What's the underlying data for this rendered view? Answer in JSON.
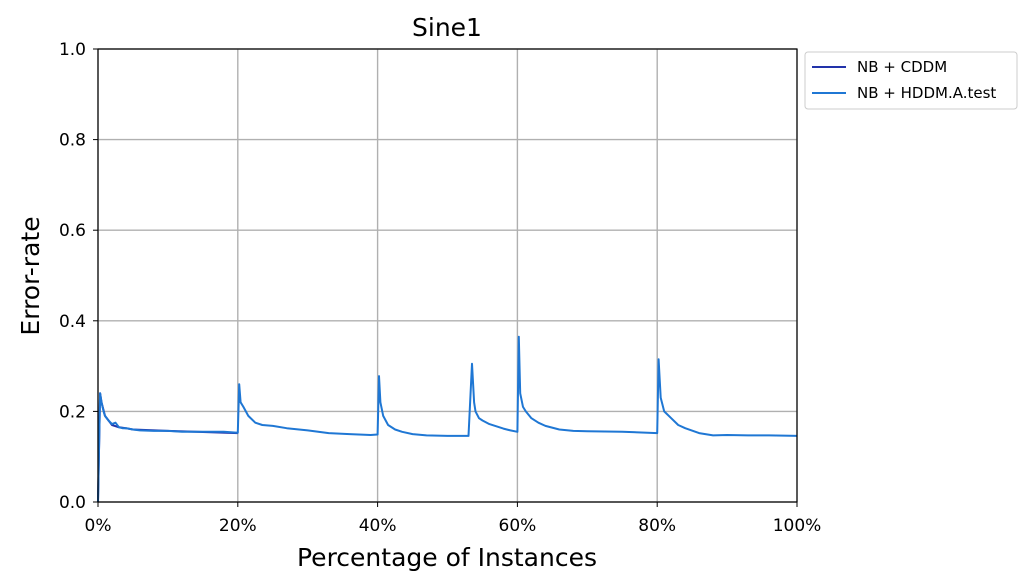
{
  "chart_data": {
    "type": "line",
    "title": "Sine1",
    "xlabel": "Percentage of Instances",
    "ylabel": "Error-rate",
    "xlim": [
      0,
      100
    ],
    "ylim": [
      0,
      1.0
    ],
    "x_ticks": [
      "0%",
      "20%",
      "40%",
      "60%",
      "80%",
      "100%"
    ],
    "y_ticks": [
      "0.0",
      "0.2",
      "0.4",
      "0.6",
      "0.8",
      "1.0"
    ],
    "grid": true,
    "legend_position": "outside-top-right",
    "series": [
      {
        "name": "NB + CDDM",
        "color": "#2233aa",
        "x": [
          0,
          0.3,
          0.5,
          1,
          2,
          3,
          4,
          5,
          10,
          20
        ],
        "y": [
          0.0,
          0.24,
          0.22,
          0.19,
          0.17,
          0.165,
          0.163,
          0.16,
          0.157,
          0.152
        ]
      },
      {
        "name": "NB + HDDM.A.test",
        "color": "#1f77d4",
        "x": [
          0,
          0.3,
          0.5,
          0.8,
          1.0,
          1.5,
          2,
          2.5,
          3,
          3.5,
          4,
          5,
          6,
          8,
          10,
          12,
          15,
          18,
          20,
          20.2,
          20.4,
          20.8,
          21.5,
          22.5,
          23.5,
          25,
          27,
          30,
          33,
          36,
          39,
          40,
          40.2,
          40.4,
          40.8,
          41.5,
          42.5,
          43.5,
          45,
          47,
          50,
          53,
          53.5,
          53.8,
          54,
          54.5,
          55,
          56,
          57,
          58,
          59,
          60,
          60.2,
          60.4,
          60.8,
          61.2,
          62,
          63,
          64,
          66,
          68,
          70,
          75,
          80,
          80.2,
          80.5,
          81,
          82,
          83,
          84,
          86,
          88,
          90,
          93,
          96,
          100
        ],
        "y": [
          0.0,
          0.24,
          0.22,
          0.2,
          0.19,
          0.18,
          0.172,
          0.175,
          0.165,
          0.163,
          0.163,
          0.16,
          0.158,
          0.157,
          0.157,
          0.155,
          0.155,
          0.155,
          0.153,
          0.26,
          0.22,
          0.21,
          0.19,
          0.175,
          0.17,
          0.168,
          0.163,
          0.158,
          0.152,
          0.15,
          0.148,
          0.149,
          0.278,
          0.22,
          0.19,
          0.17,
          0.16,
          0.155,
          0.15,
          0.147,
          0.146,
          0.146,
          0.305,
          0.22,
          0.2,
          0.185,
          0.18,
          0.172,
          0.167,
          0.162,
          0.158,
          0.155,
          0.365,
          0.24,
          0.21,
          0.2,
          0.185,
          0.175,
          0.168,
          0.16,
          0.157,
          0.156,
          0.155,
          0.152,
          0.315,
          0.23,
          0.2,
          0.185,
          0.17,
          0.163,
          0.152,
          0.147,
          0.148,
          0.147,
          0.147,
          0.146
        ]
      }
    ]
  }
}
